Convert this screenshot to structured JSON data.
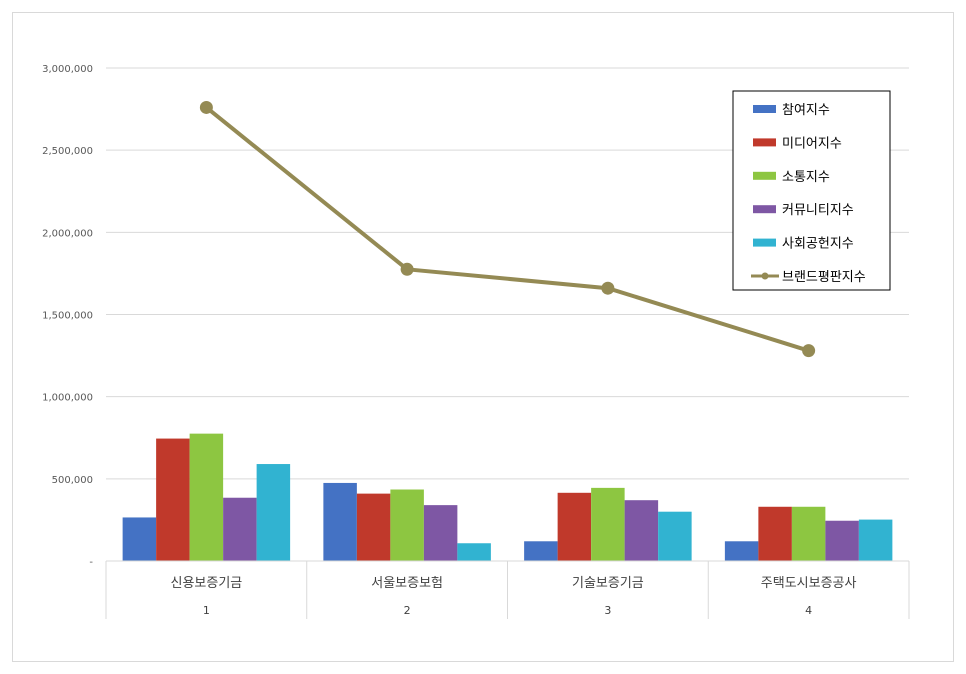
{
  "chart_data": {
    "type": "bar",
    "title": "",
    "xlabel": "",
    "ylabel": "",
    "ylim": [
      0,
      3000000
    ],
    "yticks": [
      0,
      500000,
      1000000,
      1500000,
      2000000,
      2500000,
      3000000
    ],
    "ytick_labels": [
      "-",
      "500,000",
      "1,000,000",
      "1,500,000",
      "2,000,000",
      "2,500,000",
      "3,000,000"
    ],
    "grid": true,
    "legend_position": "top-right",
    "categories": [
      "신용보증기금",
      "서울보증보험",
      "기술보증기금",
      "주택도시보증공사"
    ],
    "group_labels": [
      "1",
      "2",
      "3",
      "4"
    ],
    "series": [
      {
        "name": "참여지수",
        "kind": "bar",
        "color": "#4472C4",
        "values": [
          265000,
          475000,
          120000,
          120000
        ]
      },
      {
        "name": "미디어지수",
        "kind": "bar",
        "color": "#C0392B",
        "values": [
          745000,
          410000,
          415000,
          330000
        ]
      },
      {
        "name": "소통지수",
        "kind": "bar",
        "color": "#8DC641",
        "values": [
          775000,
          435000,
          445000,
          330000
        ]
      },
      {
        "name": "커뮤니티지수",
        "kind": "bar",
        "color": "#7E57A4",
        "values": [
          385000,
          340000,
          370000,
          245000
        ]
      },
      {
        "name": "사회공헌지수",
        "kind": "bar",
        "color": "#31B3D1",
        "values": [
          590000,
          108000,
          300000,
          252000
        ]
      },
      {
        "name": "브랜드평판지수",
        "kind": "line",
        "color": "#948A54",
        "values": [
          2760000,
          1775000,
          1660000,
          1280000
        ]
      }
    ]
  }
}
